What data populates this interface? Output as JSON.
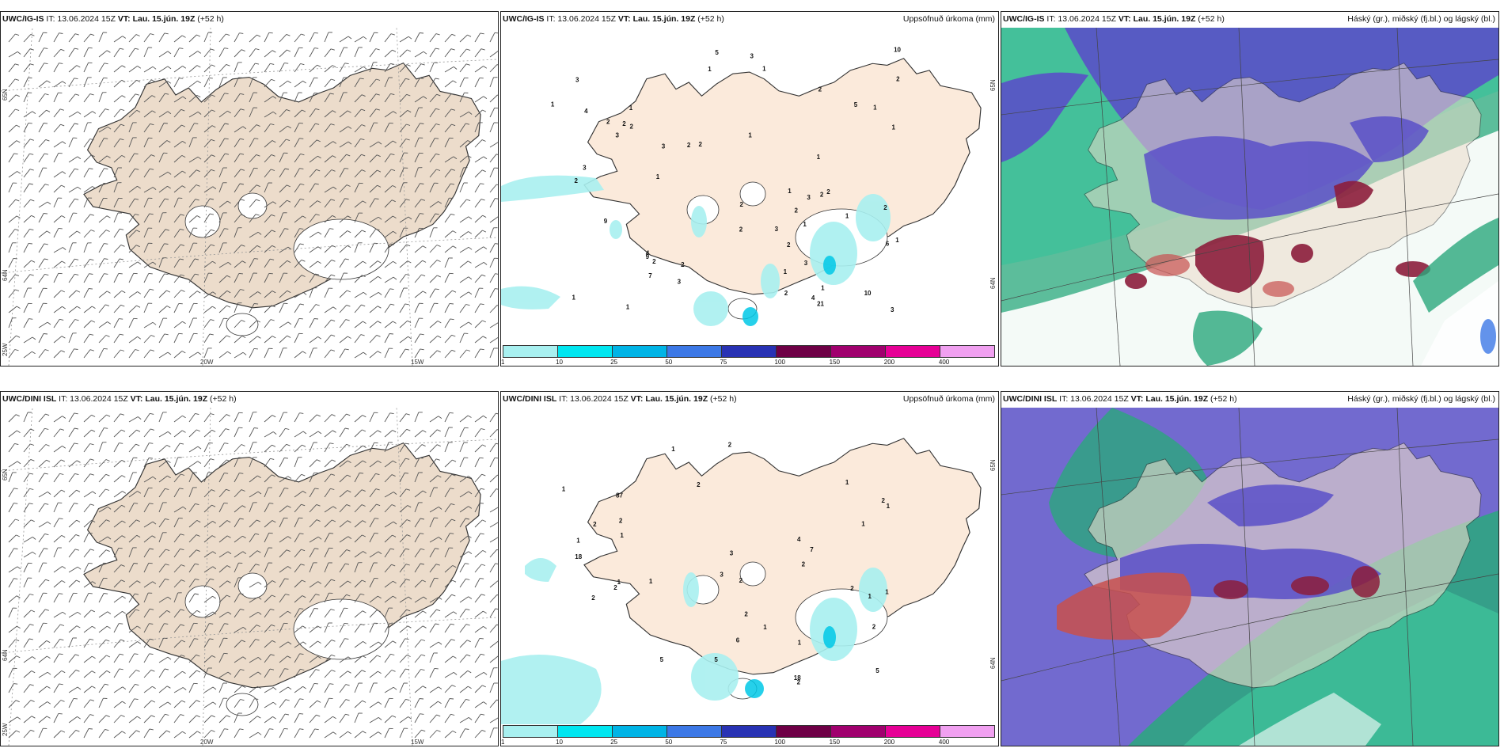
{
  "panels": [
    {
      "model": "UWC/IG-IS",
      "it": "IT: 13.06.2024 15Z",
      "vt_label": "VT:",
      "vt": "Lau. 15.jún. 19Z",
      "lead": "(+52 h)",
      "right": "",
      "type": "wind"
    },
    {
      "model": "UWC/IG-IS",
      "it": "IT: 13.06.2024 15Z",
      "vt_label": "VT:",
      "vt": "Lau. 15.jún. 19Z",
      "lead": "(+52 h)",
      "right": "Uppsöfnuð úrkoma (mm)",
      "type": "precip"
    },
    {
      "model": "UWC/IG-IS",
      "it": "IT: 13.06.2024 15Z",
      "vt_label": "VT:",
      "vt": "Lau. 15.jún. 19Z",
      "lead": "(+52 h)",
      "right": "Háský (gr.), miðský (fj.bl.) og lágský (bl.)",
      "type": "cloud"
    },
    {
      "model": "UWC/DINI ISL",
      "it": "IT: 13.06.2024 15Z",
      "vt_label": "VT:",
      "vt": "Lau. 15.jún. 19Z",
      "lead": "(+52 h)",
      "right": "",
      "type": "wind"
    },
    {
      "model": "UWC/DINI ISL",
      "it": "IT: 13.06.2024 15Z",
      "vt_label": "VT:",
      "vt": "Lau. 15.jún. 19Z",
      "lead": "(+52 h)",
      "right": "Uppsöfnuð úrkoma (mm)",
      "type": "precip"
    },
    {
      "model": "UWC/DINI ISL",
      "it": "IT: 13.06.2024 15Z",
      "vt_label": "VT:",
      "vt": "Lau. 15.jún. 19Z",
      "lead": "(+52 h)",
      "right": "Háský (gr.), miðský (fj.bl.) og lágský (bl.)",
      "type": "cloud"
    }
  ],
  "axes": {
    "lon_labels": [
      "20W",
      "15W"
    ],
    "lat_labels": [
      "65N",
      "64N",
      "25W"
    ],
    "precip_lat_labels": [
      "65N",
      "64N"
    ]
  },
  "colorbar": {
    "ticks": [
      "1",
      "10",
      "25",
      "50",
      "75",
      "100",
      "150",
      "200",
      "400"
    ],
    "colors": [
      "#a8f0f0",
      "#00e6f0",
      "#00b4e6",
      "#3c78e6",
      "#2832b4",
      "#6e0046",
      "#a0006e",
      "#e60096",
      "#f0a0f0"
    ]
  },
  "precip_labels_top": [
    "1",
    "2",
    "1",
    "1",
    "2",
    "3",
    "1",
    "2",
    "2",
    "2",
    "1",
    "1",
    "2",
    "2",
    "1",
    "2",
    "1",
    "1",
    "2",
    "2",
    "3",
    "1",
    "1",
    "10",
    "2",
    "3",
    "1",
    "2",
    "4",
    "1",
    "5",
    "2",
    "2",
    "7",
    "3",
    "2",
    "1",
    "3",
    "4",
    "5",
    "9",
    "4",
    "3",
    "2",
    "10",
    "1",
    "2",
    "6",
    "3",
    "1",
    "2",
    "9",
    "3",
    "1",
    "3",
    "21",
    "3"
  ],
  "precip_labels_bottom": [
    "2",
    "2",
    "1",
    "1",
    "2",
    "18",
    "1",
    "1",
    "2",
    "5",
    "2",
    "4",
    "7",
    "2",
    "6",
    "2",
    "2",
    "1",
    "5",
    "1",
    "3",
    "3",
    "1",
    "1",
    "2",
    "1",
    "18",
    "5",
    "2",
    "2",
    "1",
    "1",
    "2",
    "87",
    "2",
    "1",
    "1"
  ],
  "colors": {
    "land_wind": "#ecdccb",
    "land_precip": "#fbeadb",
    "cloud_high": "#5a50c8",
    "cloud_mid": "#2aa87c",
    "cloud_low": "#8c1e3c"
  }
}
